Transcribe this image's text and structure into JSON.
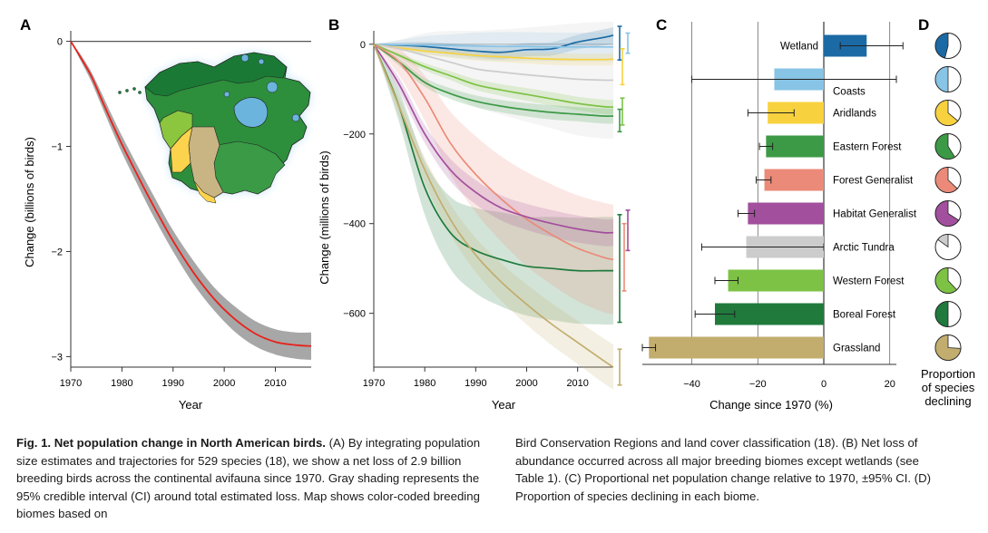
{
  "chart_data": [
    {
      "panel": "A",
      "type": "line",
      "xlabel": "Year",
      "ylabel": "Change (billions of birds)",
      "xlim": [
        1970,
        2017
      ],
      "ylim": [
        -3.1,
        0.1
      ],
      "xticks": [
        "1970",
        "1980",
        "1990",
        "2000",
        "2010"
      ],
      "yticks": [
        "0",
        "−1",
        "−2",
        "−3"
      ],
      "line_color": "#e8221b",
      "band_color": "#9d9d9d",
      "points": [
        {
          "x": 1970,
          "y": 0,
          "lo": 0,
          "hi": 0
        },
        {
          "x": 1972,
          "y": -0.16,
          "lo": -0.19,
          "hi": -0.13
        },
        {
          "x": 1974,
          "y": -0.33,
          "lo": -0.38,
          "hi": -0.29
        },
        {
          "x": 1976,
          "y": -0.55,
          "lo": -0.61,
          "hi": -0.49
        },
        {
          "x": 1978,
          "y": -0.77,
          "lo": -0.84,
          "hi": -0.7
        },
        {
          "x": 1980,
          "y": -0.98,
          "lo": -1.06,
          "hi": -0.9
        },
        {
          "x": 1983,
          "y": -1.27,
          "lo": -1.36,
          "hi": -1.18
        },
        {
          "x": 1986,
          "y": -1.55,
          "lo": -1.65,
          "hi": -1.45
        },
        {
          "x": 1990,
          "y": -1.9,
          "lo": -2.0,
          "hi": -1.8
        },
        {
          "x": 1994,
          "y": -2.2,
          "lo": -2.31,
          "hi": -2.09
        },
        {
          "x": 1998,
          "y": -2.45,
          "lo": -2.56,
          "hi": -2.34
        },
        {
          "x": 2002,
          "y": -2.64,
          "lo": -2.76,
          "hi": -2.52
        },
        {
          "x": 2006,
          "y": -2.78,
          "lo": -2.9,
          "hi": -2.66
        },
        {
          "x": 2010,
          "y": -2.86,
          "lo": -2.98,
          "hi": -2.74
        },
        {
          "x": 2014,
          "y": -2.89,
          "lo": -3.02,
          "hi": -2.77
        },
        {
          "x": 2017,
          "y": -2.9,
          "lo": -3.03,
          "hi": -2.77
        }
      ]
    },
    {
      "panel": "B",
      "type": "line",
      "xlabel": "Year",
      "ylabel": "Change (millions of birds)",
      "xlim": [
        1970,
        2017
      ],
      "ylim": [
        -720,
        30
      ],
      "xticks": [
        "1970",
        "1980",
        "1990",
        "2000",
        "2010"
      ],
      "yticks": [
        "0",
        "−200",
        "−400",
        "−600"
      ],
      "x": [
        1970,
        1975,
        1980,
        1985,
        1990,
        1995,
        2000,
        2005,
        2010,
        2015,
        2017
      ],
      "series": [
        {
          "biome": "Wetland",
          "color": "#1b6aa5",
          "values": [
            0,
            -2,
            -5,
            -10,
            -15,
            -18,
            -12,
            -10,
            5,
            15,
            20
          ],
          "spread": [
            0,
            6,
            10,
            12,
            14,
            15,
            15,
            15,
            16,
            18,
            18
          ]
        },
        {
          "biome": "Coasts",
          "color": "#87c4e6",
          "values": [
            0,
            -1,
            -2,
            -3,
            -4,
            -5,
            -5,
            -6,
            -6,
            -6,
            -6
          ],
          "spread": [
            0,
            10,
            20,
            25,
            30,
            32,
            32,
            32,
            32,
            32,
            32
          ]
        },
        {
          "biome": "Aridlands",
          "color": "#f8d23e",
          "values": [
            0,
            -8,
            -15,
            -20,
            -25,
            -28,
            -31,
            -33,
            -34,
            -34,
            -33
          ],
          "spread": [
            0,
            5,
            8,
            10,
            11,
            12,
            12,
            13,
            13,
            13,
            13
          ]
        },
        {
          "biome": "Arctic Tundra",
          "color": "#cccccc",
          "values": [
            0,
            -10,
            -25,
            -40,
            -55,
            -62,
            -68,
            -73,
            -78,
            -80,
            -80
          ],
          "spread": [
            0,
            20,
            50,
            70,
            85,
            95,
            105,
            115,
            125,
            130,
            130
          ]
        },
        {
          "biome": "Western Forest",
          "color": "#7dc244",
          "values": [
            0,
            -25,
            -50,
            -70,
            -90,
            -102,
            -112,
            -122,
            -132,
            -139,
            -140
          ],
          "spread": [
            0,
            5,
            8,
            10,
            12,
            13,
            14,
            15,
            15,
            16,
            16
          ]
        },
        {
          "biome": "Boreal Forest",
          "color": "#1f7a3c",
          "values": [
            0,
            -140,
            -320,
            -420,
            -460,
            -480,
            -495,
            -500,
            -505,
            -505,
            -505
          ],
          "spread": [
            0,
            35,
            60,
            80,
            95,
            105,
            110,
            115,
            118,
            120,
            120
          ]
        },
        {
          "biome": "Eastern Forest",
          "color": "#3c9a46",
          "values": [
            0,
            -40,
            -85,
            -110,
            -127,
            -138,
            -146,
            -152,
            -156,
            -160,
            -160
          ],
          "spread": [
            0,
            8,
            10,
            12,
            13,
            14,
            15,
            16,
            16,
            17,
            17
          ]
        },
        {
          "biome": "Forest Generalist",
          "color": "#eb8a78",
          "values": [
            0,
            -40,
            -120,
            -220,
            -290,
            -345,
            -390,
            -425,
            -455,
            -475,
            -480
          ],
          "spread": [
            0,
            30,
            50,
            70,
            85,
            95,
            105,
            112,
            118,
            122,
            122
          ]
        },
        {
          "biome": "Habitat Generalist",
          "color": "#a24f9d",
          "values": [
            0,
            -90,
            -200,
            -280,
            -330,
            -365,
            -385,
            -400,
            -412,
            -420,
            -420
          ],
          "spread": [
            0,
            15,
            20,
            25,
            27,
            28,
            29,
            30,
            30,
            30,
            30
          ]
        },
        {
          "biome": "Grassland",
          "color": "#c2ad6e",
          "values": [
            0,
            -140,
            -280,
            -390,
            -470,
            -530,
            -580,
            -625,
            -665,
            -705,
            -720
          ],
          "spread": [
            0,
            20,
            28,
            34,
            38,
            42,
            45,
            47,
            48,
            50,
            50
          ]
        }
      ],
      "ci_bars": [
        {
          "color": "#1b6aa5",
          "lo": -35,
          "hi": 40
        },
        {
          "color": "#87c4e6",
          "lo": -20,
          "hi": 25
        },
        {
          "color": "#f8d23e",
          "lo": -90,
          "hi": -10
        },
        {
          "color": "#7dc244",
          "lo": -180,
          "hi": -120
        },
        {
          "color": "#3c9a46",
          "lo": -195,
          "hi": -145
        },
        {
          "color": "#1f7a3c",
          "lo": -620,
          "hi": -380
        },
        {
          "color": "#a24f9d",
          "lo": -460,
          "hi": -370
        },
        {
          "color": "#eb8a78",
          "lo": -550,
          "hi": -400
        },
        {
          "color": "#c2ad6e",
          "lo": -760,
          "hi": -680
        }
      ]
    },
    {
      "panel": "C",
      "type": "bar",
      "xlabel": "Change since 1970 (%)",
      "xlim": [
        -55,
        22
      ],
      "xticks": [
        "−40",
        "−20",
        "0",
        "20"
      ],
      "categories": [
        "Wetland",
        "Coasts",
        "Aridlands",
        "Eastern Forest",
        "Forest Generalist",
        "Habitat Generalist",
        "Arctic Tundra",
        "Western Forest",
        "Boreal Forest",
        "Grassland"
      ],
      "values": [
        13,
        -15,
        -17,
        -17.5,
        -18,
        -23,
        -23.5,
        -29,
        -33,
        -53
      ],
      "err_lo": [
        5,
        -40,
        -23,
        -19.5,
        -20.5,
        -26,
        -37,
        -33,
        -39,
        -55
      ],
      "err_hi": [
        24,
        22,
        -9,
        -15.5,
        -16,
        -21,
        0,
        -26,
        -27,
        -51
      ],
      "colors": [
        "#1b6aa5",
        "#87c4e6",
        "#f8d23e",
        "#3c9a46",
        "#eb8a78",
        "#a24f9d",
        "#cccccc",
        "#7dc244",
        "#1f7a3c",
        "#c2ad6e"
      ]
    },
    {
      "panel": "D",
      "type": "pie",
      "title": "Proportion of species declining",
      "categories": [
        "Wetland",
        "Coasts",
        "Aridlands",
        "Eastern Forest",
        "Forest Generalist",
        "Habitat Generalist",
        "Arctic Tundra",
        "Western Forest",
        "Boreal Forest",
        "Grassland"
      ],
      "declining_fraction": [
        0.46,
        0.5,
        0.64,
        0.59,
        0.63,
        0.66,
        0.15,
        0.62,
        0.5,
        0.74
      ],
      "colors": [
        "#1b6aa5",
        "#87c4e6",
        "#f8d23e",
        "#3c9a46",
        "#eb8a78",
        "#a24f9d",
        "#cccccc",
        "#7dc244",
        "#1f7a3c",
        "#c2ad6e"
      ]
    }
  ],
  "panel_letters": [
    "A",
    "B",
    "C",
    "D"
  ],
  "map": {
    "biome_colors": {
      "Arctic Tundra": "#1a7a35",
      "Boreal Forest": "#2d8e3c",
      "Wetland": "#6ab4dd",
      "Western Forest": "#8cc63f",
      "Aridlands": "#fcd34d",
      "Grassland": "#c9b584",
      "Eastern Forest": "#3a9a46",
      "glow": "#bfe0f5"
    }
  },
  "caption": {
    "title": "Fig. 1. Net population change in North American birds.",
    "left_text": " (A) By integrating population size estimates and trajectories for 529 species (18), we show a net loss of 2.9 billion breeding birds across the continental avifauna since 1970. Gray shading represents the 95% credible interval (CI) around total estimated loss. Map shows color-coded breeding biomes based on",
    "right_text": "Bird Conservation Regions and land cover classification (18). (B) Net loss of abundance occurred across all major breeding biomes except wetlands (see Table 1). (C) Proportional net population change relative to 1970, ±95% CI. (D) Proportion of species declining in each biome."
  }
}
